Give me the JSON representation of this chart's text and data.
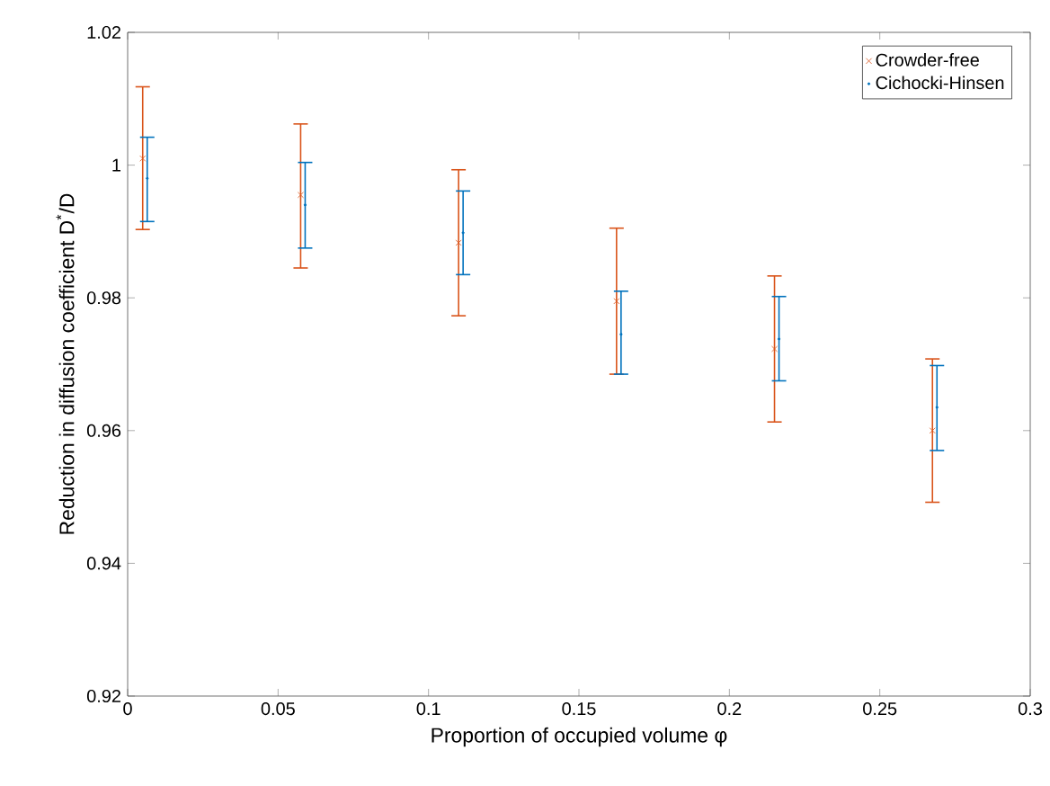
{
  "chart_data": {
    "type": "scatter",
    "xlabel": "Proportion of occupied volume φ",
    "ylabel": "Reduction in diffusion coefficient D$^{*}$/D",
    "xlim": [
      0,
      0.3
    ],
    "ylim": [
      0.92,
      1.02
    ],
    "xticks": [
      0,
      0.05,
      0.1,
      0.15,
      0.2,
      0.25,
      0.3
    ],
    "yticks": [
      0.92,
      0.94,
      0.96,
      0.98,
      1,
      1.02
    ],
    "grid": false,
    "legend": "top right",
    "series": [
      {
        "name": "Crowder-free",
        "color": "#d95319",
        "marker": "cross",
        "x": [
          0.005,
          0.0575,
          0.11,
          0.1625,
          0.215,
          0.2675
        ],
        "values": [
          1.001,
          0.9955,
          0.9883,
          0.9795,
          0.9723,
          0.96
        ],
        "errors": [
          [
            0.9903,
            1.0118
          ],
          [
            0.9845,
            1.0062
          ],
          [
            0.9773,
            0.9993
          ],
          [
            0.9685,
            0.9905
          ],
          [
            0.9613,
            0.9833
          ],
          [
            0.9492,
            0.9708
          ]
        ]
      },
      {
        "name": "Cichocki-Hinsen",
        "color": "#0072bd",
        "marker": "point",
        "x": [
          0.0065,
          0.059,
          0.1115,
          0.164,
          0.2165,
          0.269
        ],
        "values": [
          0.998,
          0.994,
          0.9898,
          0.9745,
          0.9738,
          0.9635
        ],
        "errors": [
          [
            0.9915,
            1.0042
          ],
          [
            0.9875,
            1.0004
          ],
          [
            0.9835,
            0.9961
          ],
          [
            0.9685,
            0.981
          ],
          [
            0.9675,
            0.9802
          ],
          [
            0.957,
            0.9698
          ]
        ]
      }
    ]
  }
}
